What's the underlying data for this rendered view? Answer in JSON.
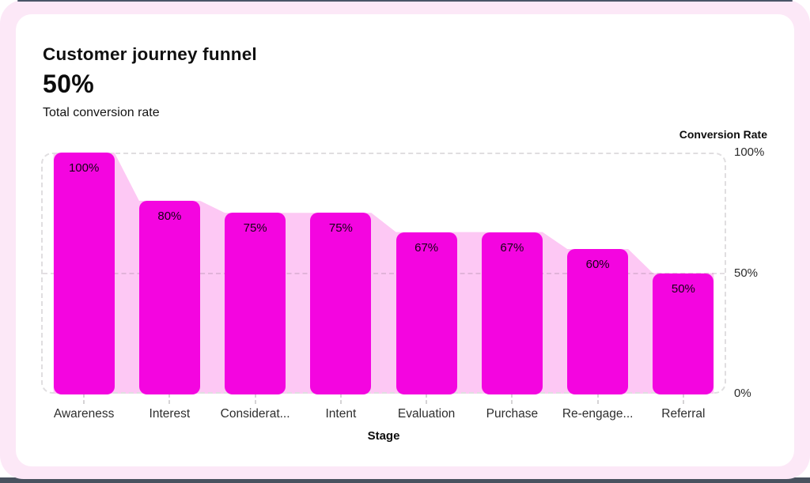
{
  "header": {
    "title": "Customer journey funnel",
    "kpi_value": "50%",
    "kpi_label": "Total conversion rate"
  },
  "chart_data": {
    "type": "bar",
    "title": "Customer journey funnel",
    "subtitle_kpi": "50% Total conversion rate",
    "xlabel": "Stage",
    "ylabel": "Conversion Rate",
    "ylim": [
      0,
      100
    ],
    "categories": [
      "Awareness",
      "Interest",
      "Considerat...",
      "Intent",
      "Evaluation",
      "Purchase",
      "Re-engage...",
      "Referral"
    ],
    "values": [
      100,
      80,
      75,
      75,
      67,
      67,
      60,
      50
    ],
    "value_labels": [
      "100%",
      "80%",
      "75%",
      "75%",
      "67%",
      "67%",
      "60%",
      "50%"
    ],
    "yticks": [
      {
        "label": "100%",
        "value": 100
      },
      {
        "label": "50%",
        "value": 50
      },
      {
        "label": "0%",
        "value": 0
      }
    ],
    "gridlines": [
      50
    ],
    "legend": "none",
    "grid": "dashed horizontal line at 50%, dashed rounded plot frame",
    "colors": {
      "bar": "#F405E0",
      "area": "#FDC8F4",
      "frame_background": "#FCE8F7",
      "card_background": "#FFFFFF",
      "plot_border": "#E0DEE0"
    }
  }
}
